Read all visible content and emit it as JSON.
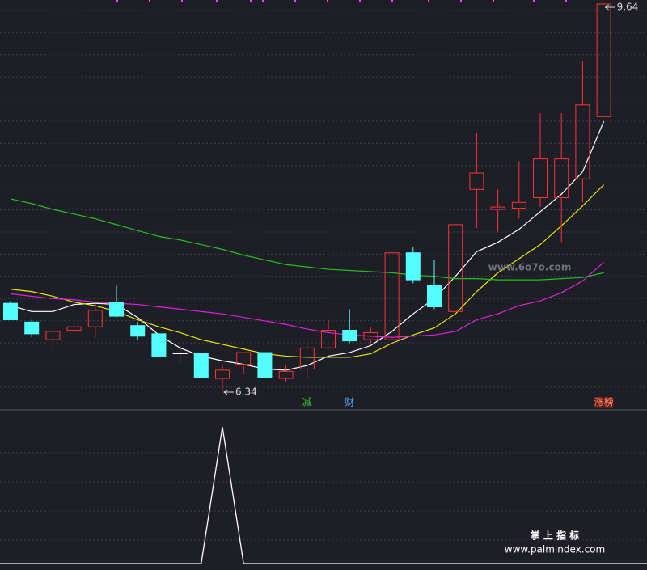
{
  "chart_data": {
    "type": "candlestick",
    "open": [
      7.09,
      6.93,
      6.78,
      6.86,
      6.89,
      7.1,
      6.9,
      6.83,
      6.66,
      6.66,
      6.45,
      6.57,
      6.67,
      6.45,
      6.53,
      6.71,
      6.86,
      6.78,
      6.78,
      7.52,
      7.24,
      7.02,
      8.06,
      7.89,
      7.9,
      7.99,
      7.99,
      8.15,
      8.68
    ],
    "high": [
      7.11,
      6.95,
      6.85,
      6.93,
      7.11,
      7.24,
      6.93,
      6.83,
      6.73,
      6.67,
      6.57,
      6.67,
      6.67,
      6.56,
      6.75,
      6.95,
      7.04,
      6.89,
      7.52,
      7.57,
      7.46,
      7.76,
      8.54,
      8.06,
      8.3,
      8.71,
      8.71,
      9.15,
      9.64
    ],
    "low": [
      6.95,
      6.8,
      6.7,
      6.84,
      6.8,
      6.97,
      6.78,
      6.62,
      6.59,
      6.46,
      6.34,
      6.49,
      6.45,
      6.42,
      6.45,
      6.7,
      6.75,
      6.75,
      6.78,
      7.26,
      7.04,
      7.02,
      7.73,
      7.7,
      7.81,
      7.91,
      7.61,
      7.95,
      8.68
    ],
    "close": [
      6.95,
      6.83,
      6.85,
      6.89,
      7.03,
      6.98,
      6.81,
      6.64,
      6.66,
      6.46,
      6.52,
      6.67,
      6.46,
      6.51,
      6.71,
      6.86,
      6.77,
      6.84,
      7.52,
      7.29,
      7.06,
      7.76,
      8.2,
      7.91,
      7.95,
      8.32,
      8.32,
      8.78,
      9.64
    ],
    "up_color": "#ff3232",
    "down_color": "#54ffff",
    "doji_color": "#ffffff",
    "series": [
      {
        "color": "#ffffff",
        "values": [
          7.07,
          7.02,
          7.02,
          7.08,
          7.09,
          7.08,
          6.97,
          6.82,
          6.71,
          6.64,
          6.6,
          6.57,
          6.53,
          6.52,
          6.56,
          6.64,
          6.67,
          6.73,
          6.85,
          7.0,
          7.13,
          7.32,
          7.53,
          7.61,
          7.72,
          7.87,
          8.02,
          8.21,
          8.64
        ]
      },
      {
        "color": "#e8e800",
        "values": [
          7.21,
          7.19,
          7.15,
          7.1,
          7.07,
          7.02,
          6.95,
          6.89,
          6.84,
          6.78,
          6.74,
          6.7,
          6.66,
          6.64,
          6.63,
          6.63,
          6.63,
          6.66,
          6.75,
          6.82,
          6.88,
          7.0,
          7.19,
          7.35,
          7.47,
          7.59,
          7.75,
          7.92,
          8.1
        ]
      },
      {
        "color": "#e020e0",
        "values": [
          7.17,
          7.15,
          7.13,
          7.12,
          7.1,
          7.09,
          7.08,
          7.06,
          7.04,
          7.02,
          7.0,
          6.97,
          6.94,
          6.91,
          6.87,
          6.84,
          6.82,
          6.81,
          6.8,
          6.81,
          6.82,
          6.85,
          6.95,
          7.0,
          7.07,
          7.11,
          7.18,
          7.28,
          7.44
        ]
      },
      {
        "color": "#22c022",
        "values": [
          7.98,
          7.94,
          7.89,
          7.85,
          7.81,
          7.76,
          7.71,
          7.66,
          7.63,
          7.59,
          7.55,
          7.5,
          7.46,
          7.42,
          7.4,
          7.38,
          7.37,
          7.36,
          7.35,
          7.33,
          7.32,
          7.3,
          7.3,
          7.29,
          7.29,
          7.29,
          7.3,
          7.31,
          7.35
        ]
      }
    ],
    "signals": [
      {
        "candle": 14,
        "text": "减",
        "color": "#33cc33"
      },
      {
        "candle": 16,
        "text": "财",
        "color": "#4aa8ff"
      },
      {
        "candle": 28,
        "text": "涨榜",
        "color": "#ff8c6a"
      }
    ],
    "indicator": {
      "color": "#ffffff",
      "values": [
        0,
        0,
        0,
        0,
        0,
        0,
        0,
        0,
        0,
        0,
        1,
        0,
        0,
        0,
        0,
        0,
        0,
        0,
        0,
        0,
        0,
        0,
        0,
        0,
        0,
        0,
        0,
        0,
        0
      ]
    }
  },
  "watermarks": {
    "site1": "www.6o7o.com",
    "brand": "掌 上 指 标",
    "site2": "www.palmindex.com"
  }
}
